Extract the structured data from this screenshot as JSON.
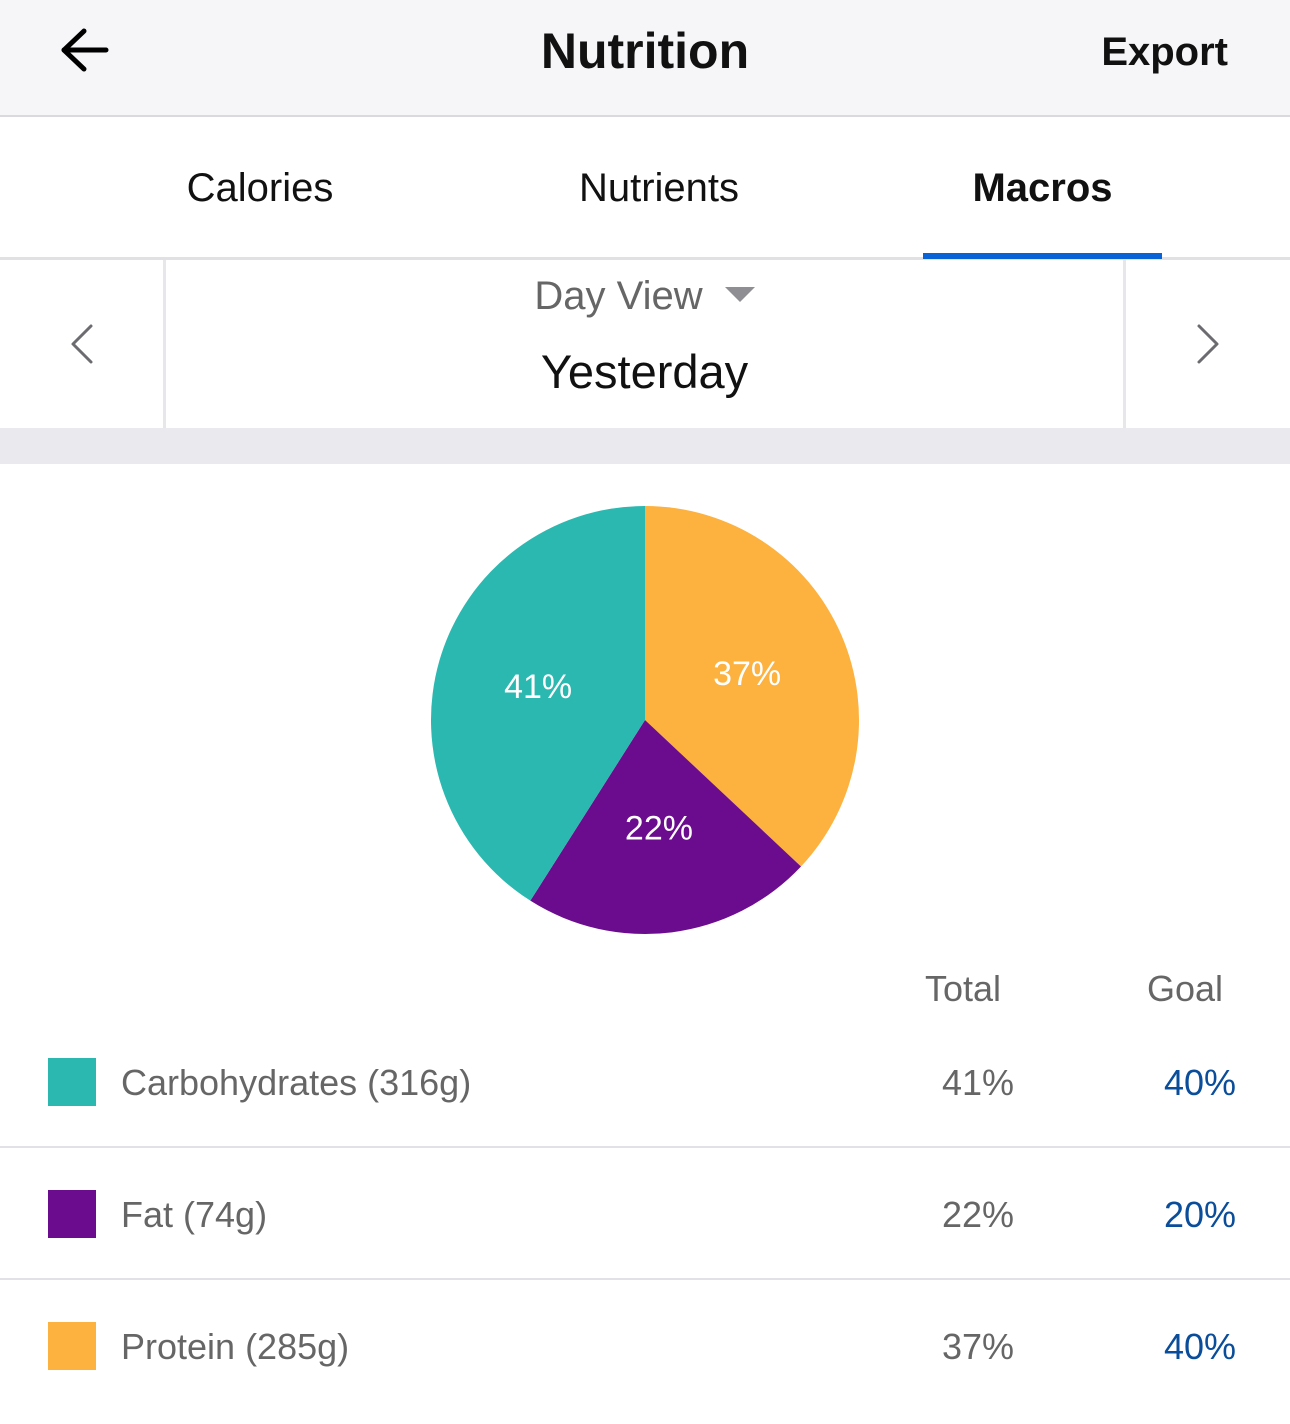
{
  "header": {
    "title": "Nutrition",
    "export_label": "Export"
  },
  "tabs": [
    {
      "label": "Calories",
      "active": false
    },
    {
      "label": "Nutrients",
      "active": false
    },
    {
      "label": "Macros",
      "active": true
    }
  ],
  "date_nav": {
    "view": "Day View",
    "date": "Yesterday"
  },
  "chart_data": {
    "type": "pie",
    "slices": [
      {
        "name": "Protein",
        "value": 37,
        "label": "37%",
        "color": "#FDB13E"
      },
      {
        "name": "Fat",
        "value": 22,
        "label": "22%",
        "color": "#6B0C8E"
      },
      {
        "name": "Carbohydrates",
        "value": 41,
        "label": "41%",
        "color": "#2BB8B0"
      }
    ]
  },
  "table": {
    "columns": {
      "total": "Total",
      "goal": "Goal"
    },
    "rows": [
      {
        "label": "Carbohydrates (316g)",
        "total": "41%",
        "goal": "40%",
        "color": "#2BB8B0"
      },
      {
        "label": "Fat (74g)",
        "total": "22%",
        "goal": "20%",
        "color": "#6B0C8E"
      },
      {
        "label": "Protein (285g)",
        "total": "37%",
        "goal": "40%",
        "color": "#FDB13E"
      }
    ]
  },
  "colors": {
    "accent": "#0A63D6",
    "goal_text": "#0A4D9A"
  }
}
